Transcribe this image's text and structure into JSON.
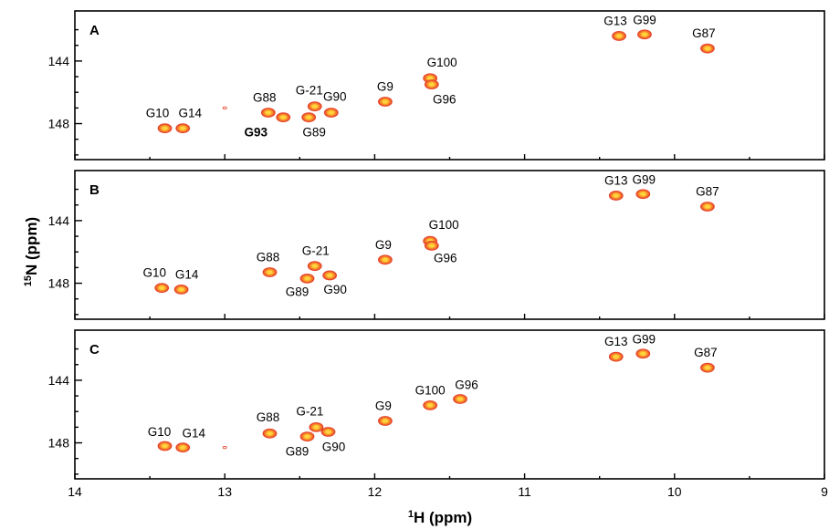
{
  "chart_data": {
    "type": "scatter",
    "subtype": "2D NMR spectra, stacked panels",
    "colors": {
      "peak_outer": "#e8452e",
      "peak_mid": "#f08a2a",
      "peak_core": "#ffd53d",
      "frame": "#000000"
    },
    "x_axis": {
      "label": "H (ppm)",
      "superscript": "1",
      "range": [
        14,
        9
      ],
      "reversed": true,
      "ticks": [
        14,
        13,
        12,
        11,
        10,
        9
      ],
      "tick_labels": [
        "14",
        "13",
        "12",
        "11",
        "10",
        "9"
      ]
    },
    "y_axis": {
      "label": "N  (ppm)",
      "superscript": "15",
      "range": [
        140.8,
        150.3
      ],
      "reversed": true,
      "ticks": [
        144,
        148
      ],
      "tick_labels": [
        "144",
        "148"
      ]
    },
    "panels": [
      {
        "letter": "A",
        "peaks": [
          {
            "label": "G10",
            "x": 13.4,
            "y": 148.3
          },
          {
            "label": "G14",
            "x": 13.28,
            "y": 148.3
          },
          {
            "label": "G88",
            "x": 12.71,
            "y": 147.3
          },
          {
            "label": "G93",
            "x": 12.61,
            "y": 147.6,
            "bold": true
          },
          {
            "label": "G-21",
            "x": 12.4,
            "y": 146.9
          },
          {
            "label": "G89",
            "x": 12.44,
            "y": 147.6
          },
          {
            "label": "G90",
            "x": 12.29,
            "y": 147.3
          },
          {
            "label": "G9",
            "x": 11.93,
            "y": 146.6
          },
          {
            "label": "G100",
            "x": 11.63,
            "y": 145.1
          },
          {
            "label": "G96",
            "x": 11.62,
            "y": 145.5
          },
          {
            "label": "G13",
            "x": 10.37,
            "y": 142.4
          },
          {
            "label": "G99",
            "x": 10.2,
            "y": 142.3
          },
          {
            "label": "G87",
            "x": 9.78,
            "y": 143.2
          },
          {
            "label": "",
            "x": 13.0,
            "y": 147.0
          }
        ]
      },
      {
        "letter": "B",
        "peaks": [
          {
            "label": "G10",
            "x": 13.42,
            "y": 148.3
          },
          {
            "label": "G14",
            "x": 13.29,
            "y": 148.4
          },
          {
            "label": "G88",
            "x": 12.7,
            "y": 147.3
          },
          {
            "label": "G-21",
            "x": 12.4,
            "y": 146.9
          },
          {
            "label": "G89",
            "x": 12.45,
            "y": 147.7
          },
          {
            "label": "G90",
            "x": 12.3,
            "y": 147.5
          },
          {
            "label": "G9",
            "x": 11.93,
            "y": 146.5
          },
          {
            "label": "G100",
            "x": 11.63,
            "y": 145.3
          },
          {
            "label": "G96",
            "x": 11.62,
            "y": 145.6
          },
          {
            "label": "G13",
            "x": 10.39,
            "y": 142.4
          },
          {
            "label": "G99",
            "x": 10.21,
            "y": 142.3
          },
          {
            "label": "G87",
            "x": 9.78,
            "y": 143.1
          }
        ]
      },
      {
        "letter": "C",
        "peaks": [
          {
            "label": "G10",
            "x": 13.4,
            "y": 148.2
          },
          {
            "label": "G14",
            "x": 13.28,
            "y": 148.3
          },
          {
            "label": "G88",
            "x": 12.7,
            "y": 147.4
          },
          {
            "label": "G-21",
            "x": 12.39,
            "y": 147.0
          },
          {
            "label": "G89",
            "x": 12.45,
            "y": 147.6
          },
          {
            "label": "G90",
            "x": 12.31,
            "y": 147.3
          },
          {
            "label": "G9",
            "x": 11.93,
            "y": 146.6
          },
          {
            "label": "G100",
            "x": 11.63,
            "y": 145.6
          },
          {
            "label": "G96",
            "x": 11.43,
            "y": 145.2
          },
          {
            "label": "G13",
            "x": 10.39,
            "y": 142.5
          },
          {
            "label": "G99",
            "x": 10.21,
            "y": 142.3
          },
          {
            "label": "G87",
            "x": 9.78,
            "y": 143.2
          },
          {
            "label": "",
            "x": 13.0,
            "y": 148.3
          }
        ]
      }
    ]
  }
}
